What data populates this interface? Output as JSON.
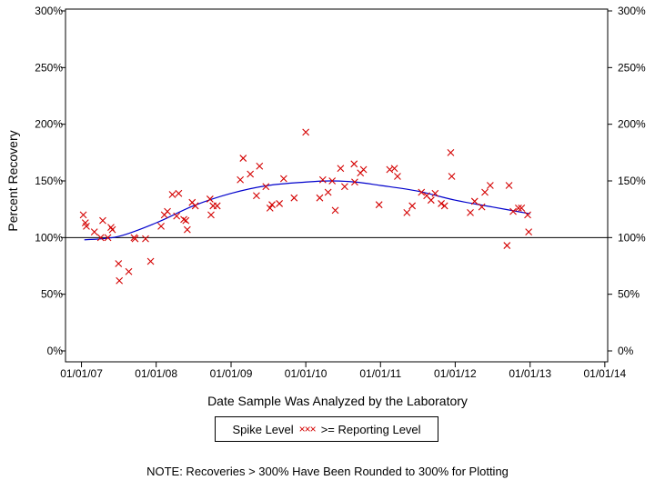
{
  "chart_data": {
    "type": "scatter",
    "xlabel": "Date Sample Was Analyzed by the Laboratory",
    "ylabel": "Percent Recovery",
    "x_tick_labels": [
      "01/01/07",
      "01/01/08",
      "01/01/09",
      "01/01/10",
      "01/01/11",
      "01/01/12",
      "01/01/13",
      "01/01/14"
    ],
    "y_tick_labels": [
      "0%",
      "50%",
      "100%",
      "150%",
      "200%",
      "250%",
      "300%"
    ],
    "ylim": [
      0,
      300
    ],
    "xlim": [
      "2006-10-15",
      "2014-01-15"
    ],
    "reference_line": 100,
    "colors": {
      "points": "#d40000",
      "trend": "#0000cc",
      "axes": "#000000"
    },
    "points": [
      [
        "2007-01-10",
        120
      ],
      [
        "2007-01-20",
        113
      ],
      [
        "2007-01-25",
        110
      ],
      [
        "2007-03-05",
        105
      ],
      [
        "2007-04-05",
        100
      ],
      [
        "2007-04-15",
        115
      ],
      [
        "2007-05-10",
        100
      ],
      [
        "2007-05-25",
        109
      ],
      [
        "2007-06-01",
        107
      ],
      [
        "2007-07-01",
        77
      ],
      [
        "2007-07-05",
        62
      ],
      [
        "2007-08-20",
        70
      ],
      [
        "2007-09-15",
        100
      ],
      [
        "2007-09-20",
        99
      ],
      [
        "2007-11-10",
        99
      ],
      [
        "2007-12-05",
        79
      ],
      [
        "2008-01-25",
        110
      ],
      [
        "2008-02-10",
        120
      ],
      [
        "2008-02-25",
        123
      ],
      [
        "2008-03-20",
        138
      ],
      [
        "2008-04-10",
        119
      ],
      [
        "2008-04-20",
        139
      ],
      [
        "2008-05-15",
        116
      ],
      [
        "2008-05-25",
        115
      ],
      [
        "2008-06-01",
        107
      ],
      [
        "2008-06-25",
        131
      ],
      [
        "2008-07-10",
        128
      ],
      [
        "2008-09-20",
        134
      ],
      [
        "2008-09-25",
        120
      ],
      [
        "2008-10-05",
        128
      ],
      [
        "2008-10-25",
        128
      ],
      [
        "2009-02-15",
        151
      ],
      [
        "2009-03-01",
        170
      ],
      [
        "2009-04-05",
        156
      ],
      [
        "2009-05-05",
        137
      ],
      [
        "2009-05-20",
        163
      ],
      [
        "2009-06-20",
        145
      ],
      [
        "2009-07-10",
        126
      ],
      [
        "2009-07-20",
        129
      ],
      [
        "2009-08-25",
        130
      ],
      [
        "2009-09-15",
        152
      ],
      [
        "2009-11-05",
        135
      ],
      [
        "2010-01-01",
        193
      ],
      [
        "2010-03-10",
        135
      ],
      [
        "2010-03-25",
        151
      ],
      [
        "2010-04-20",
        140
      ],
      [
        "2010-05-10",
        150
      ],
      [
        "2010-05-25",
        124
      ],
      [
        "2010-06-20",
        161
      ],
      [
        "2010-07-10",
        145
      ],
      [
        "2010-08-25",
        165
      ],
      [
        "2010-08-28",
        149
      ],
      [
        "2010-09-25",
        157
      ],
      [
        "2010-10-10",
        160
      ],
      [
        "2010-12-25",
        129
      ],
      [
        "2011-02-15",
        160
      ],
      [
        "2011-03-10",
        161
      ],
      [
        "2011-03-25",
        154
      ],
      [
        "2011-05-10",
        122
      ],
      [
        "2011-06-05",
        128
      ],
      [
        "2011-07-20",
        140
      ],
      [
        "2011-08-15",
        137
      ],
      [
        "2011-09-05",
        133
      ],
      [
        "2011-09-25",
        139
      ],
      [
        "2011-10-25",
        130
      ],
      [
        "2011-11-10",
        128
      ],
      [
        "2011-12-10",
        175
      ],
      [
        "2011-12-15",
        154
      ],
      [
        "2012-03-15",
        122
      ],
      [
        "2012-04-05",
        132
      ],
      [
        "2012-05-10",
        127
      ],
      [
        "2012-05-25",
        140
      ],
      [
        "2012-06-20",
        146
      ],
      [
        "2012-09-10",
        93
      ],
      [
        "2012-09-20",
        146
      ],
      [
        "2012-10-10",
        123
      ],
      [
        "2012-11-05",
        126
      ],
      [
        "2012-11-20",
        126
      ],
      [
        "2012-12-20",
        120
      ],
      [
        "2012-12-25",
        105
      ]
    ],
    "trend": [
      [
        "2007-01-15",
        98
      ],
      [
        "2007-07-01",
        101
      ],
      [
        "2008-01-01",
        113
      ],
      [
        "2008-07-01",
        128
      ],
      [
        "2009-01-01",
        139
      ],
      [
        "2009-07-01",
        146
      ],
      [
        "2010-01-01",
        149
      ],
      [
        "2010-05-01",
        150
      ],
      [
        "2010-09-01",
        149
      ],
      [
        "2011-01-01",
        146
      ],
      [
        "2011-07-01",
        141
      ],
      [
        "2012-01-01",
        133
      ],
      [
        "2012-07-01",
        127
      ],
      [
        "2013-01-01",
        121
      ]
    ]
  },
  "legend": {
    "label_spike": "Spike Level",
    "marker_glyphs": "×××",
    "label_reporting": ">= Reporting Level"
  },
  "note": "NOTE: Recoveries > 300% Have Been Rounded to 300% for Plotting"
}
